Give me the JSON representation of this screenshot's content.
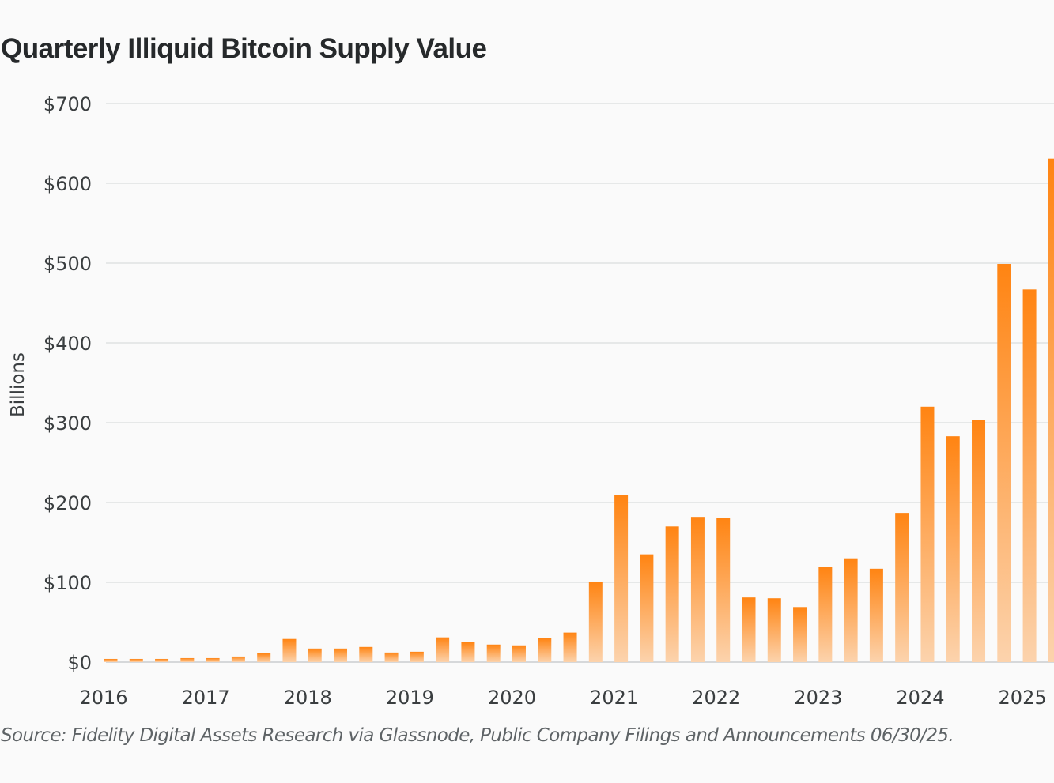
{
  "chart_data": {
    "type": "bar",
    "title": "Quarterly Illiquid Bitcoin Supply Value",
    "xlabel": "",
    "ylabel": "Billions",
    "ylim": [
      0,
      700
    ],
    "yticks": [
      0,
      100,
      200,
      300,
      400,
      500,
      600,
      700
    ],
    "ytick_labels": [
      "$0",
      "$100",
      "$200",
      "$300",
      "$400",
      "$500",
      "$600",
      "$700"
    ],
    "xtick_labels": [
      "2016",
      "2017",
      "2018",
      "2019",
      "2020",
      "2021",
      "2022",
      "2023",
      "2024",
      "2025"
    ],
    "grid": true,
    "legend": "none",
    "bar_color_top": "#ff8412",
    "bar_color_bottom": "#fcd3ad",
    "categories": [
      "2016-Q1",
      "2016-Q2",
      "2016-Q3",
      "2016-Q4",
      "2017-Q1",
      "2017-Q2",
      "2017-Q3",
      "2017-Q4",
      "2018-Q1",
      "2018-Q2",
      "2018-Q3",
      "2018-Q4",
      "2019-Q1",
      "2019-Q2",
      "2019-Q3",
      "2019-Q4",
      "2020-Q1",
      "2020-Q2",
      "2020-Q3",
      "2020-Q4",
      "2021-Q1",
      "2021-Q2",
      "2021-Q3",
      "2021-Q4",
      "2022-Q1",
      "2022-Q2",
      "2022-Q3",
      "2022-Q4",
      "2023-Q1",
      "2023-Q2",
      "2023-Q3",
      "2023-Q4",
      "2024-Q1",
      "2024-Q2",
      "2024-Q3",
      "2024-Q4",
      "2025-Q1",
      "2025-Q2"
    ],
    "values": [
      4,
      4,
      4,
      5,
      5,
      7,
      11,
      29,
      17,
      17,
      19,
      12,
      13,
      31,
      25,
      22,
      21,
      30,
      37,
      101,
      209,
      135,
      170,
      182,
      181,
      81,
      80,
      69,
      119,
      130,
      117,
      187,
      320,
      283,
      303,
      499,
      467,
      631
    ]
  },
  "source": "Source: Fidelity Digital Assets Research via Glassnode, Public Company Filings and Announcements 06/30/25."
}
